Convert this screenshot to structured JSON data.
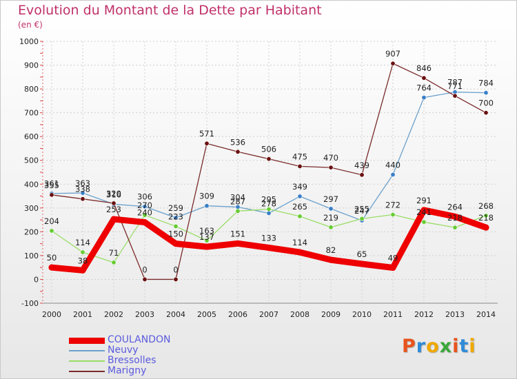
{
  "header": {
    "title": "Evolution du Montant de la Dette par Habitant",
    "subtitle": "(en €)"
  },
  "logo": {
    "text": "Proxiti",
    "colors": [
      "#e8541c",
      "#2f8bd8",
      "#f0a800",
      "#3aa83a",
      "#e8541c",
      "#2f8bd8",
      "#f0a800"
    ]
  },
  "chart_data": {
    "type": "line",
    "title": "Evolution du Montant de la Dette par Habitant",
    "ylabel": "(en €)",
    "xlabel": "",
    "x": [
      2000,
      2001,
      2002,
      2003,
      2004,
      2005,
      2006,
      2007,
      2008,
      2009,
      2010,
      2011,
      2012,
      2013,
      2014
    ],
    "ylim": [
      -100,
      1000
    ],
    "yticks": [
      -100,
      0,
      100,
      200,
      300,
      400,
      500,
      600,
      700,
      800,
      900,
      1000
    ],
    "legend_position": "bottom-left",
    "series": [
      {
        "name": "COULANDON",
        "color": "#ee0000",
        "width": 9,
        "marker": 0,
        "values": [
          50,
          38,
          253,
          240,
          150,
          137,
          151,
          133,
          114,
          82,
          65,
          49,
          291,
          264,
          218
        ]
      },
      {
        "name": "Neuvy",
        "color": "#6aa0cc",
        "width": 1.3,
        "marker": 3.2,
        "markerColor": "#3a7fc8",
        "values": [
          361,
          363,
          316,
          306,
          259,
          309,
          304,
          278,
          349,
          297,
          247,
          440,
          764,
          787,
          784
        ]
      },
      {
        "name": "Bressolles",
        "color": "#99dd66",
        "width": 1.3,
        "marker": 3.2,
        "markerColor": "#66cc33",
        "values": [
          204,
          114,
          71,
          270,
          223,
          163,
          287,
          295,
          265,
          219,
          255,
          272,
          241,
          218,
          268
        ]
      },
      {
        "name": "Marigny",
        "color": "#7a2a2a",
        "width": 1.3,
        "marker": 3.2,
        "markerColor": "#6a1010",
        "values": [
          355,
          338,
          320,
          0,
          0,
          571,
          536,
          506,
          475,
          470,
          439,
          907,
          846,
          771,
          700
        ]
      }
    ]
  }
}
